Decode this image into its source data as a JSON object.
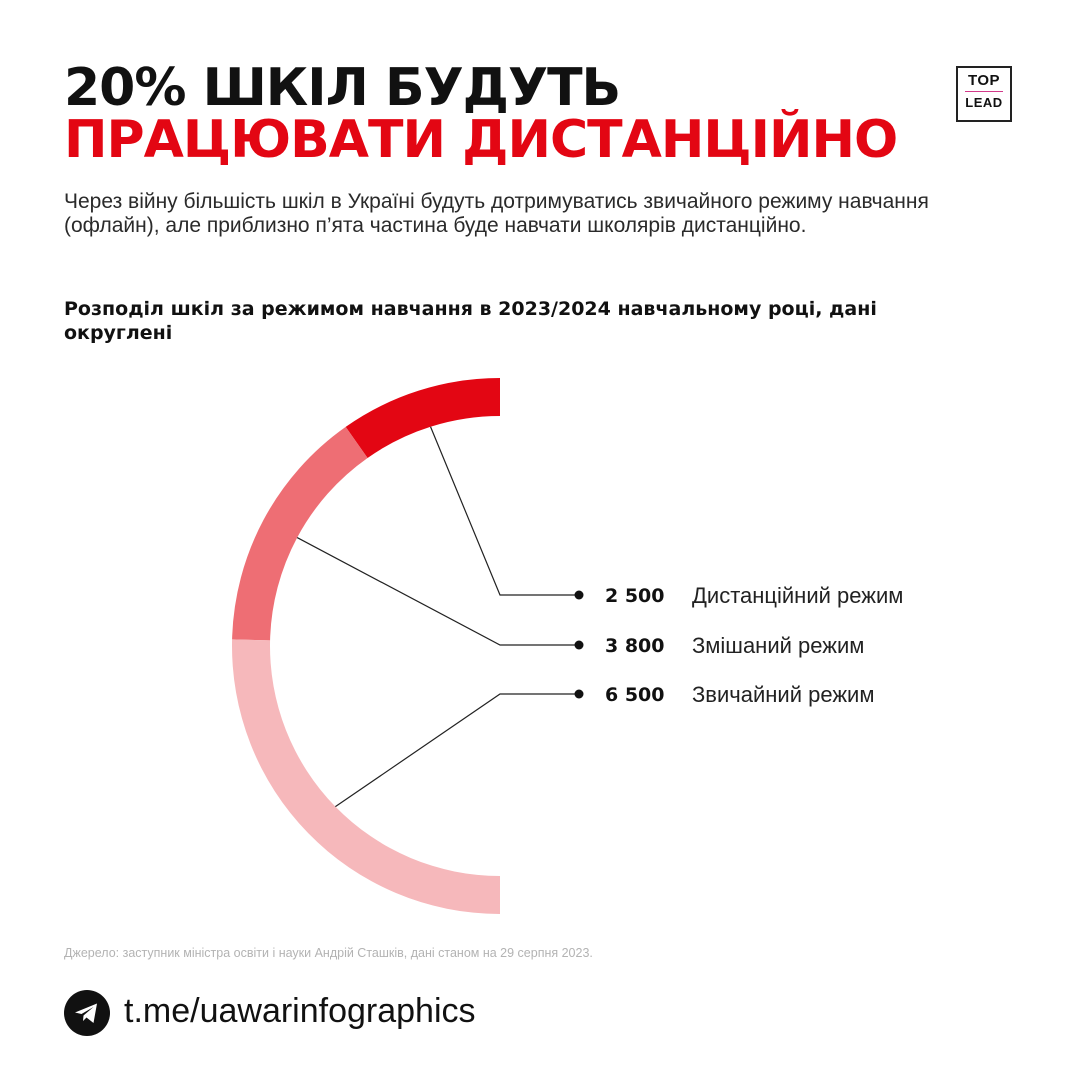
{
  "header": {
    "title_line1": "20% ШКІЛ БУДУТЬ",
    "title_line2": "ПРАЦЮВАТИ ДИСТАНЦІЙНО",
    "logo_top": "TOP",
    "logo_bottom": "LEAD"
  },
  "lead_text": "Через війну більшість шкіл в Україні будуть дотримуватись звичайного режиму навчання (офлайн), але приблизно п’ята частина буде навчати школярів дистанційно.",
  "chart_data": {
    "type": "pie",
    "title": "Розподіл шкіл за режимом навчання в 2023/2024 навчальному році, дані округлені",
    "categories": [
      "Дистанційний режим",
      "Змішаний режим",
      "Звичайний режим"
    ],
    "values": [
      2500,
      3800,
      6500
    ],
    "value_labels": [
      "2 500",
      "3 800",
      "6 500"
    ],
    "colors": [
      "#e30613",
      "#ee6e74",
      "#f6b8bb"
    ],
    "legend_position": "right"
  },
  "footer": {
    "source": "Джерело: заступник міністра освіти і науки Андрій Сташків, дані станом на 29 серпня 2023.",
    "link": "t.me/uawarinfographics",
    "icon": "telegram-icon"
  }
}
